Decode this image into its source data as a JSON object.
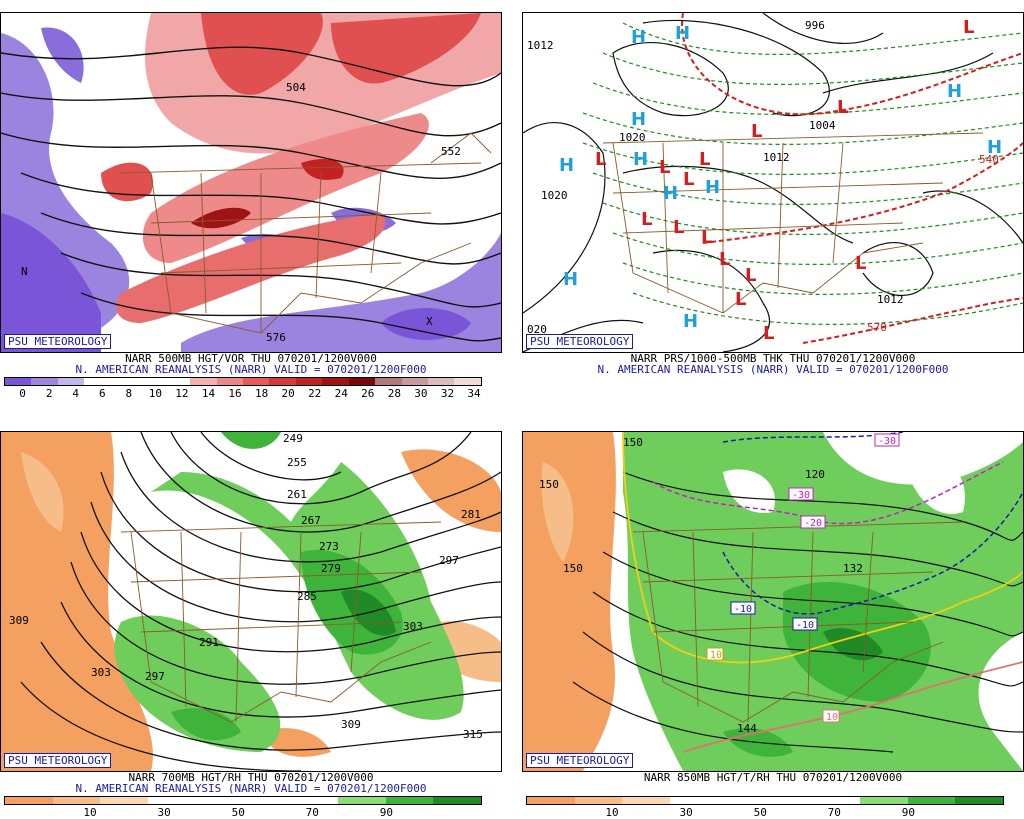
{
  "panels": [
    {
      "id": "p1",
      "title": "NARR 500MB HGT/VOR THU 070201/1200V000",
      "subtitle": "N. AMERICAN REANALYSIS (NARR) VALID = 070201/1200F000",
      "credit": "PSU METEOROLOGY",
      "colorbar": {
        "colors": [
          "#7b55d8",
          "#9c86e0",
          "#c2b6ea",
          "#ffffff",
          "#ffffff",
          "#ffffff",
          "#ffffff",
          "#f6b0b0",
          "#ee8686",
          "#e45a5a",
          "#d63a3a",
          "#c22222",
          "#9e1414",
          "#7a0a0a",
          "#b07a7a",
          "#c89a9a",
          "#dcbcbc",
          "#f0dada"
        ],
        "ticks": [
          "0",
          "2",
          "4",
          "6",
          "8",
          "10",
          "12",
          "14",
          "16",
          "18",
          "20",
          "22",
          "24",
          "26",
          "28",
          "30",
          "32",
          "34"
        ]
      },
      "labels": [
        "504",
        "552",
        "576",
        "N",
        "X"
      ]
    },
    {
      "id": "p2",
      "title": "NARR PRS/1000-500MB THK THU 070201/1200V000",
      "subtitle": "N. AMERICAN REANALYSIS (NARR) VALID = 070201/1200F000",
      "credit": "PSU METEOROLOGY",
      "highs": [
        "H",
        "H",
        "H",
        "H",
        "H",
        "H",
        "H",
        "H",
        "H",
        "H",
        "H"
      ],
      "lows": [
        "L",
        "L",
        "L",
        "L",
        "L",
        "L",
        "L",
        "L",
        "L",
        "L",
        "L",
        "L",
        "L",
        "L",
        "L"
      ],
      "labels": [
        "996",
        "1012",
        "1020",
        "1004",
        "1012",
        "540",
        "570",
        "020",
        "1012",
        "1020"
      ]
    },
    {
      "id": "p3",
      "title": "NARR 700MB HGT/RH THU 070201/1200V000",
      "subtitle": "N. AMERICAN REANALYSIS (NARR) VALID = 070201/1200F000",
      "credit": "PSU METEOROLOGY",
      "colorbar": {
        "colors": [
          "#f3a060",
          "#f7bd88",
          "#fbd9b4",
          "#ffffff",
          "#ffffff",
          "#ffffff",
          "#ffffff",
          "#8edc78",
          "#3fb43a",
          "#1f8a26"
        ],
        "ticks": [
          "10",
          "30",
          "50",
          "70",
          "90"
        ]
      },
      "labels": [
        "249",
        "255",
        "261",
        "267",
        "273",
        "279",
        "285",
        "291",
        "297",
        "303",
        "309",
        "315",
        "297",
        "303",
        "309",
        "281"
      ]
    },
    {
      "id": "p4",
      "title": "NARR 850MB HGT/T/RH THU 070201/1200V000",
      "subtitle": "",
      "credit": "PSU METEOROLOGY",
      "colorbar": {
        "colors": [
          "#f3a060",
          "#f7bd88",
          "#fbd9b4",
          "#ffffff",
          "#ffffff",
          "#ffffff",
          "#ffffff",
          "#8edc78",
          "#3fb43a",
          "#1f8a26"
        ],
        "ticks": [
          "10",
          "30",
          "50",
          "70",
          "90"
        ]
      },
      "labels": [
        "150",
        "150",
        "144",
        "132",
        "120",
        "150",
        "-30",
        "-30",
        "-20",
        "-10",
        "-10",
        "10",
        "10"
      ]
    }
  ],
  "colors": {
    "blue_label": "#1a1aa6",
    "high": "#1ea0dc",
    "low": "#d21e1e",
    "border": "#8b5a2b",
    "thickness": "#1e8c1e"
  }
}
